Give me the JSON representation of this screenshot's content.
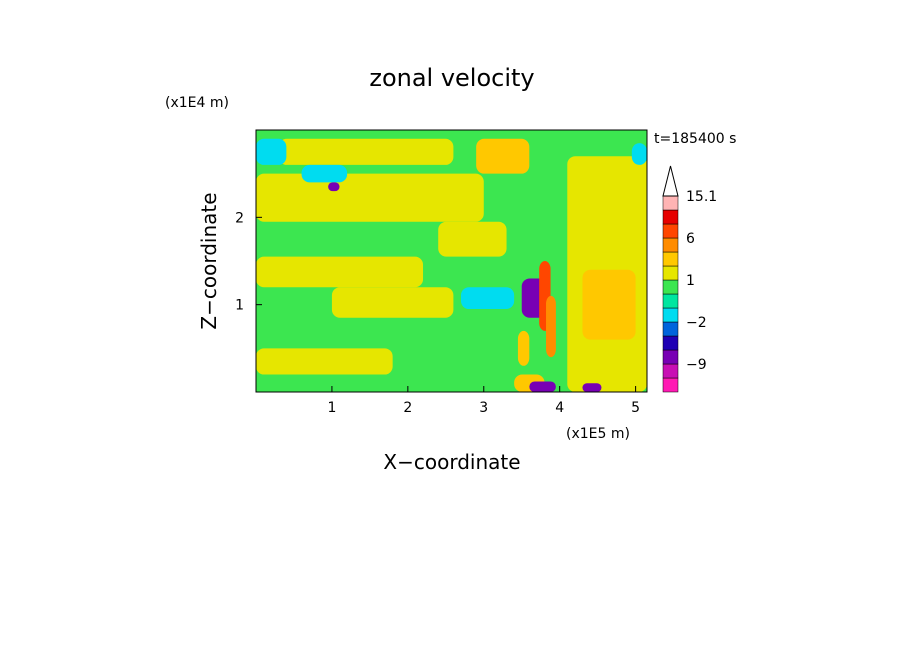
{
  "chart_data": {
    "type": "heatmap",
    "title": "zonal velocity",
    "xlabel": "X−coordinate",
    "ylabel": "Z−coordinate",
    "x_unit": "(x1E5 m)",
    "y_unit": "(x1E4 m)",
    "time_label": "t=185400 s",
    "xlim": [
      0,
      5.15
    ],
    "ylim": [
      0,
      3.0
    ],
    "x_ticks": [
      "1",
      "2",
      "3",
      "4",
      "5"
    ],
    "y_ticks": [
      "1",
      "2"
    ],
    "colorbar": {
      "levels": [
        -15,
        -12,
        -9,
        -6,
        -3,
        -2,
        -1,
        0,
        1,
        2,
        3,
        6,
        9,
        12,
        15.1
      ],
      "colors": [
        "#ff1ab4",
        "#c80fb4",
        "#7800b4",
        "#1e00b4",
        "#0064dc",
        "#00dcf0",
        "#00e6a0",
        "#3ce650",
        "#e6e600",
        "#ffc800",
        "#ff8c00",
        "#ff4600",
        "#e60000",
        "#ffb4b4",
        "#ffffff"
      ],
      "tick_labels": [
        "15.1",
        "6",
        "1",
        "−2",
        "−9"
      ],
      "extend": "max"
    },
    "regions": [
      {
        "x": [
          0.0,
          5.15
        ],
        "y": [
          0.0,
          3.0
        ],
        "value": 0.5
      },
      {
        "x": [
          0.0,
          1.8
        ],
        "y": [
          0.2,
          0.5
        ],
        "value": 1.5
      },
      {
        "x": [
          0.0,
          2.2
        ],
        "y": [
          1.2,
          1.55
        ],
        "value": 1.5
      },
      {
        "x": [
          0.0,
          3.0
        ],
        "y": [
          1.95,
          2.5
        ],
        "value": 1.5
      },
      {
        "x": [
          0.3,
          2.6
        ],
        "y": [
          2.6,
          2.9
        ],
        "value": 1.5
      },
      {
        "x": [
          1.0,
          2.6
        ],
        "y": [
          0.85,
          1.2
        ],
        "value": 1.5
      },
      {
        "x": [
          2.4,
          3.3
        ],
        "y": [
          1.55,
          1.95
        ],
        "value": 1.5
      },
      {
        "x": [
          4.1,
          5.15
        ],
        "y": [
          0.0,
          2.7
        ],
        "value": 1.5
      },
      {
        "x": [
          4.3,
          5.0
        ],
        "y": [
          0.6,
          1.4
        ],
        "value": 2.5
      },
      {
        "x": [
          2.9,
          3.6
        ],
        "y": [
          2.5,
          2.9
        ],
        "value": 2.5
      },
      {
        "x": [
          3.4,
          3.8
        ],
        "y": [
          0.0,
          0.2
        ],
        "value": 2.5
      },
      {
        "x": [
          4.95,
          5.15
        ],
        "y": [
          2.6,
          2.85
        ],
        "value": -1.5
      },
      {
        "x": [
          0.0,
          0.4
        ],
        "y": [
          2.6,
          2.9
        ],
        "value": -1.5
      },
      {
        "x": [
          0.6,
          1.2
        ],
        "y": [
          2.4,
          2.6
        ],
        "value": -1.5
      },
      {
        "x": [
          2.7,
          3.4
        ],
        "y": [
          0.95,
          1.2
        ],
        "value": -1.5
      },
      {
        "x": [
          3.5,
          3.85
        ],
        "y": [
          0.85,
          1.3
        ],
        "value": -8
      },
      {
        "x": [
          3.6,
          3.95
        ],
        "y": [
          0.0,
          0.12
        ],
        "value": -8
      },
      {
        "x": [
          4.3,
          4.55
        ],
        "y": [
          0.0,
          0.1
        ],
        "value": -8
      },
      {
        "x": [
          3.73,
          3.88
        ],
        "y": [
          0.7,
          1.5
        ],
        "value": 7
      },
      {
        "x": [
          3.82,
          3.95
        ],
        "y": [
          0.4,
          1.1
        ],
        "value": 4
      },
      {
        "x": [
          0.95,
          1.1
        ],
        "y": [
          2.3,
          2.4
        ],
        "value": -8
      },
      {
        "x": [
          3.45,
          3.6
        ],
        "y": [
          0.3,
          0.7
        ],
        "value": 2.5
      }
    ]
  }
}
